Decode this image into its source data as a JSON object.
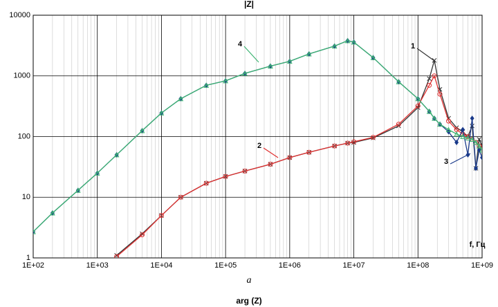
{
  "chart_data": {
    "type": "line",
    "title": "|Z|",
    "x_label": "f, Гц",
    "caption": "a",
    "next_title": "arg (Z)",
    "xscale": "log",
    "yscale": "log",
    "grid": true,
    "minor_grid": true,
    "x": [
      100,
      200,
      500,
      1000,
      2000,
      5000,
      10000,
      20000,
      50000,
      100000,
      200000,
      500000,
      1000000,
      2000000,
      5000000,
      8000000,
      10000000,
      20000000,
      50000000,
      100000000,
      150000000,
      180000000,
      220000000,
      300000000,
      400000000,
      500000000,
      600000000,
      700000000,
      800000000,
      900000000,
      1000000000
    ],
    "series": [
      {
        "name": "1",
        "color": "#333333",
        "marker": "x",
        "values": [
          null,
          null,
          null,
          null,
          1.1,
          2.5,
          5,
          10,
          17,
          22,
          27,
          35,
          45,
          55,
          70,
          78,
          80,
          95,
          150,
          300,
          900,
          1800,
          600,
          200,
          140,
          120,
          100,
          150,
          30,
          90,
          70
        ]
      },
      {
        "name": "2",
        "color": "#e03030",
        "marker": "circle",
        "values": [
          null,
          null,
          null,
          null,
          1.05,
          2.4,
          5,
          10,
          17,
          22,
          27,
          35,
          45,
          55,
          70,
          78,
          82,
          97,
          160,
          320,
          700,
          1000,
          500,
          180,
          130,
          110,
          100,
          90,
          80,
          70,
          65
        ]
      },
      {
        "name": "3",
        "color": "#1a3a8a",
        "marker": "diamond",
        "values": [
          2.7,
          5.5,
          13,
          25,
          50,
          125,
          245,
          420,
          700,
          830,
          1100,
          1450,
          1740,
          2300,
          3100,
          3800,
          3600,
          2000,
          800,
          420,
          260,
          200,
          160,
          120,
          80,
          130,
          50,
          200,
          30,
          60,
          45
        ]
      },
      {
        "name": "4",
        "color": "#3cb371",
        "marker": "triangle",
        "values": [
          2.7,
          5.5,
          13,
          25,
          50,
          125,
          245,
          420,
          700,
          830,
          1100,
          1450,
          1740,
          2300,
          3100,
          3800,
          3600,
          2000,
          800,
          420,
          260,
          200,
          160,
          130,
          110,
          100,
          95,
          90,
          80,
          70,
          60
        ]
      }
    ],
    "xlim": [
      100,
      1000000000
    ],
    "xticks": [
      {
        "value": 100,
        "label": "1E+02"
      },
      {
        "value": 1000,
        "label": "1E+03"
      },
      {
        "value": 10000,
        "label": "1E+04"
      },
      {
        "value": 100000,
        "label": "1E+05"
      },
      {
        "value": 1000000,
        "label": "1E+06"
      },
      {
        "value": 10000000,
        "label": "1E+07"
      },
      {
        "value": 100000000,
        "label": "1E+08"
      },
      {
        "value": 1000000000,
        "label": "1E+09"
      }
    ],
    "ylim": [
      1,
      10000
    ],
    "yticks": [
      1,
      10,
      100,
      1000,
      10000
    ]
  }
}
